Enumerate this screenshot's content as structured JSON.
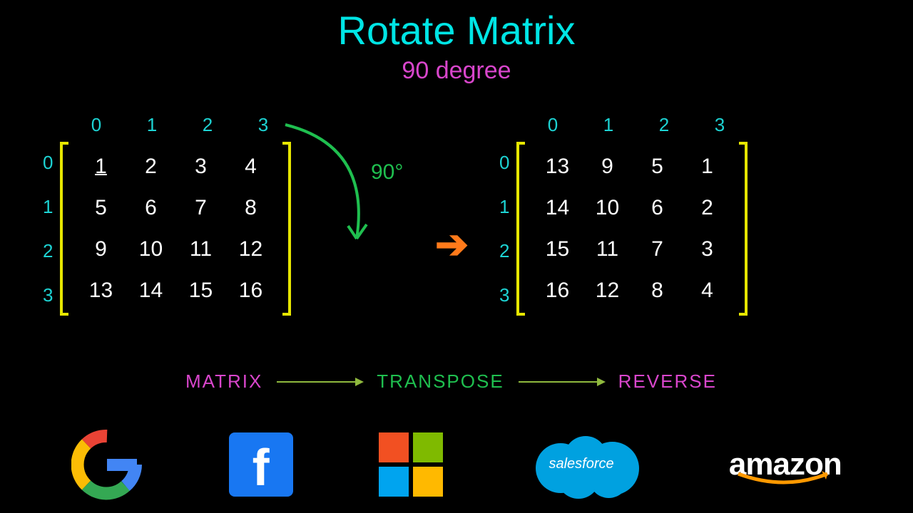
{
  "title": "Rotate Matrix",
  "subtitle": "90 degree",
  "rotation_label": "90°",
  "colors": {
    "background": "#000000",
    "title": "#00e5e5",
    "subtitle": "#d946cc",
    "indices": "#1dd3d3",
    "brackets": "#e6e600",
    "cells": "#ffffff",
    "curve_arrow": "#1fbf4f",
    "big_arrow": "#ff7a1a",
    "step_matrix": "#d946cc",
    "step_transpose": "#1fbf4f",
    "step_reverse": "#d946cc",
    "step_arrow": "#8fb93e"
  },
  "matrix_left": {
    "col_indices": [
      "0",
      "1",
      "2",
      "3"
    ],
    "row_indices": [
      "0",
      "1",
      "2",
      "3"
    ],
    "rows": [
      [
        "1",
        "2",
        "3",
        "4"
      ],
      [
        "5",
        "6",
        "7",
        "8"
      ],
      [
        "9",
        "10",
        "11",
        "12"
      ],
      [
        "13",
        "14",
        "15",
        "16"
      ]
    ]
  },
  "matrix_right": {
    "col_indices": [
      "0",
      "1",
      "2",
      "3"
    ],
    "row_indices": [
      "0",
      "1",
      "2",
      "3"
    ],
    "rows": [
      [
        "13",
        "9",
        "5",
        "1"
      ],
      [
        "14",
        "10",
        "6",
        "2"
      ],
      [
        "15",
        "11",
        "7",
        "3"
      ],
      [
        "16",
        "12",
        "8",
        "4"
      ]
    ]
  },
  "steps": {
    "a": "MATRIX",
    "b": "TRANSPOSE",
    "c": "REVERSE"
  },
  "logos": {
    "google": "google-logo",
    "facebook": "facebook-logo",
    "microsoft": "microsoft-logo",
    "salesforce": "salesforce-logo",
    "salesforce_text": "salesforce",
    "amazon": "amazon-logo",
    "amazon_text": "amazon"
  },
  "typography": {
    "title_fontsize": 56,
    "subtitle_fontsize": 34,
    "index_fontsize": 26,
    "cell_fontsize": 30,
    "step_fontsize": 26
  }
}
